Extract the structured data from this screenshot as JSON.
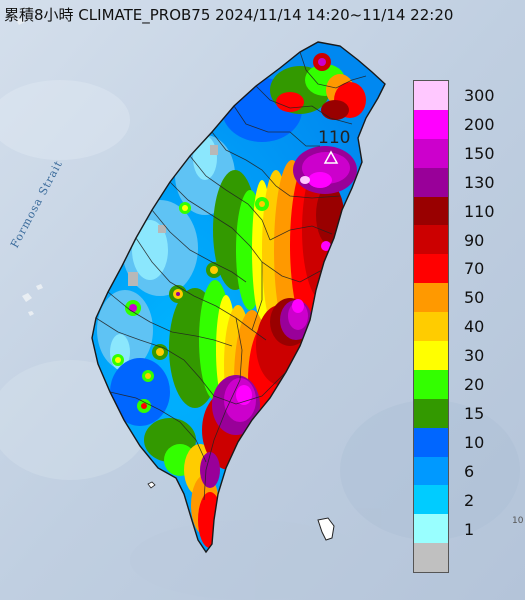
{
  "map": {
    "title": "累積8小時 CLIMATE_PROB75 2024/11/14 14:20~11/14 22:20",
    "water_label": "Formosa Strait",
    "max_label": "110",
    "edge_label": "10"
  },
  "legend": {
    "items": [
      {
        "label": "300",
        "color": "#ffc8ff"
      },
      {
        "label": "200",
        "color": "#ff00ff"
      },
      {
        "label": "150",
        "color": "#cc00cc"
      },
      {
        "label": "130",
        "color": "#990099"
      },
      {
        "label": "110",
        "color": "#990000"
      },
      {
        "label": "90",
        "color": "#cc0000"
      },
      {
        "label": "70",
        "color": "#ff0000"
      },
      {
        "label": "50",
        "color": "#ff9900"
      },
      {
        "label": "40",
        "color": "#ffcc00"
      },
      {
        "label": "30",
        "color": "#ffff00"
      },
      {
        "label": "20",
        "color": "#33ff00"
      },
      {
        "label": "15",
        "color": "#339900"
      },
      {
        "label": "10",
        "color": "#0066ff"
      },
      {
        "label": "6",
        "color": "#0099ff"
      },
      {
        "label": "2",
        "color": "#00ccff"
      },
      {
        "label": "1",
        "color": "#99ffff"
      },
      {
        "label": "",
        "color": "#c0c0c0"
      }
    ]
  }
}
